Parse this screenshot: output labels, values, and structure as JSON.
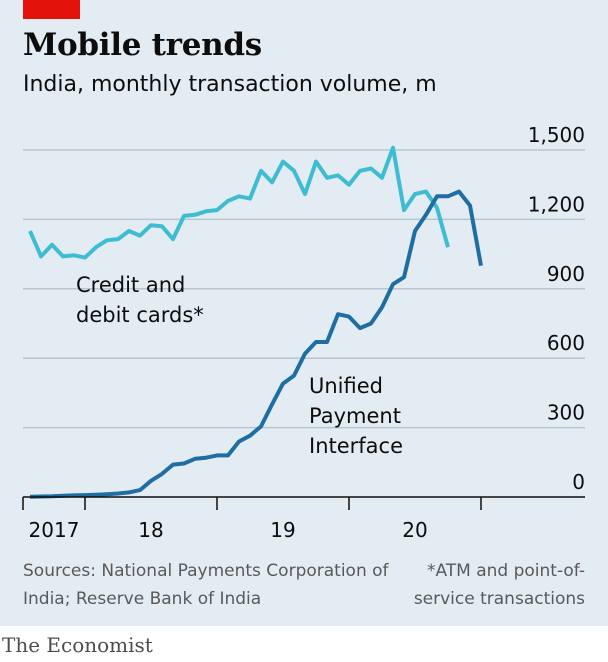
{
  "header": {
    "title": "Mobile trends",
    "subtitle": "India, monthly transaction volume, m"
  },
  "footer": {
    "sources": "Sources: National Payments Corporation of India; Reserve Bank of India",
    "note": "*ATM and point-of-service transactions",
    "brand": "The Economist"
  },
  "colors": {
    "cards": "#3ebcd2",
    "upi": "#1f6ea3",
    "accent_red": "#e3120b",
    "background": "#e3ecf3"
  },
  "chart_data": {
    "type": "line",
    "title": "Mobile trends",
    "subtitle": "India, monthly transaction volume, m",
    "y_axis": {
      "ticks": [
        0,
        300,
        600,
        900,
        1200,
        1500
      ],
      "tick_labels": [
        "0",
        "300",
        "600",
        "900",
        "1,200",
        "1,500"
      ],
      "ylim": [
        0,
        1500
      ],
      "position": "right"
    },
    "x_axis": {
      "tick_labels": [
        "2017",
        "18",
        "19",
        "20"
      ],
      "xlim": [
        "2016-08",
        "2020-08"
      ]
    },
    "grid": true,
    "series": [
      {
        "name": "Credit and debit cards*",
        "label_lines": [
          "Credit and",
          "debit cards*"
        ],
        "color": "#3ebcd2",
        "points": [
          [
            "2016-08",
            1150
          ],
          [
            "2016-09",
            1040
          ],
          [
            "2016-10",
            1090
          ],
          [
            "2016-11",
            1040
          ],
          [
            "2016-12",
            1045
          ],
          [
            "2017-01",
            1035
          ],
          [
            "2017-02",
            1080
          ],
          [
            "2017-03",
            1110
          ],
          [
            "2017-04",
            1115
          ],
          [
            "2017-05",
            1150
          ],
          [
            "2017-06",
            1130
          ],
          [
            "2017-07",
            1175
          ],
          [
            "2017-08",
            1170
          ],
          [
            "2017-09",
            1115
          ],
          [
            "2017-10",
            1215
          ],
          [
            "2017-11",
            1220
          ],
          [
            "2017-12",
            1235
          ],
          [
            "2018-01",
            1240
          ],
          [
            "2018-02",
            1280
          ],
          [
            "2018-03",
            1300
          ],
          [
            "2018-04",
            1290
          ],
          [
            "2018-05",
            1410
          ],
          [
            "2018-06",
            1360
          ],
          [
            "2018-07",
            1450
          ],
          [
            "2018-08",
            1410
          ],
          [
            "2018-09",
            1310
          ],
          [
            "2018-10",
            1450
          ],
          [
            "2018-11",
            1380
          ],
          [
            "2018-12",
            1390
          ],
          [
            "2019-01",
            1350
          ],
          [
            "2019-02",
            1410
          ],
          [
            "2019-03",
            1420
          ],
          [
            "2019-04",
            1380
          ],
          [
            "2019-05",
            1510
          ],
          [
            "2019-06",
            1240
          ],
          [
            "2019-07",
            1310
          ],
          [
            "2019-08",
            1320
          ],
          [
            "2019-09",
            1250
          ],
          [
            "2019-10",
            1080
          ]
        ]
      },
      {
        "name": "Unified Payment Interface",
        "label_lines": [
          "Unified",
          "Payment",
          "Interface"
        ],
        "color": "#1f6ea3",
        "points": [
          [
            "2016-08",
            1
          ],
          [
            "2016-09",
            2
          ],
          [
            "2016-10",
            3
          ],
          [
            "2016-11",
            5
          ],
          [
            "2016-12",
            7
          ],
          [
            "2017-01",
            8
          ],
          [
            "2017-02",
            10
          ],
          [
            "2017-03",
            12
          ],
          [
            "2017-04",
            15
          ],
          [
            "2017-05",
            20
          ],
          [
            "2017-06",
            30
          ],
          [
            "2017-07",
            70
          ],
          [
            "2017-08",
            100
          ],
          [
            "2017-09",
            140
          ],
          [
            "2017-10",
            145
          ],
          [
            "2017-11",
            165
          ],
          [
            "2017-12",
            170
          ],
          [
            "2018-01",
            180
          ],
          [
            "2018-02",
            180
          ],
          [
            "2018-03",
            240
          ],
          [
            "2018-04",
            265
          ],
          [
            "2018-05",
            305
          ],
          [
            "2018-06",
            400
          ],
          [
            "2018-07",
            490
          ],
          [
            "2018-08",
            525
          ],
          [
            "2018-09",
            620
          ],
          [
            "2018-10",
            670
          ],
          [
            "2018-11",
            670
          ],
          [
            "2018-12",
            790
          ],
          [
            "2019-01",
            780
          ],
          [
            "2019-02",
            730
          ],
          [
            "2019-03",
            750
          ],
          [
            "2019-04",
            820
          ],
          [
            "2019-05",
            920
          ],
          [
            "2019-06",
            950
          ],
          [
            "2019-07",
            1150
          ],
          [
            "2019-08",
            1220
          ],
          [
            "2019-09",
            1300
          ],
          [
            "2019-10",
            1300
          ],
          [
            "2019-11",
            1320
          ],
          [
            "2019-12",
            1260
          ],
          [
            "2020-01",
            1000
          ]
        ]
      }
    ]
  }
}
